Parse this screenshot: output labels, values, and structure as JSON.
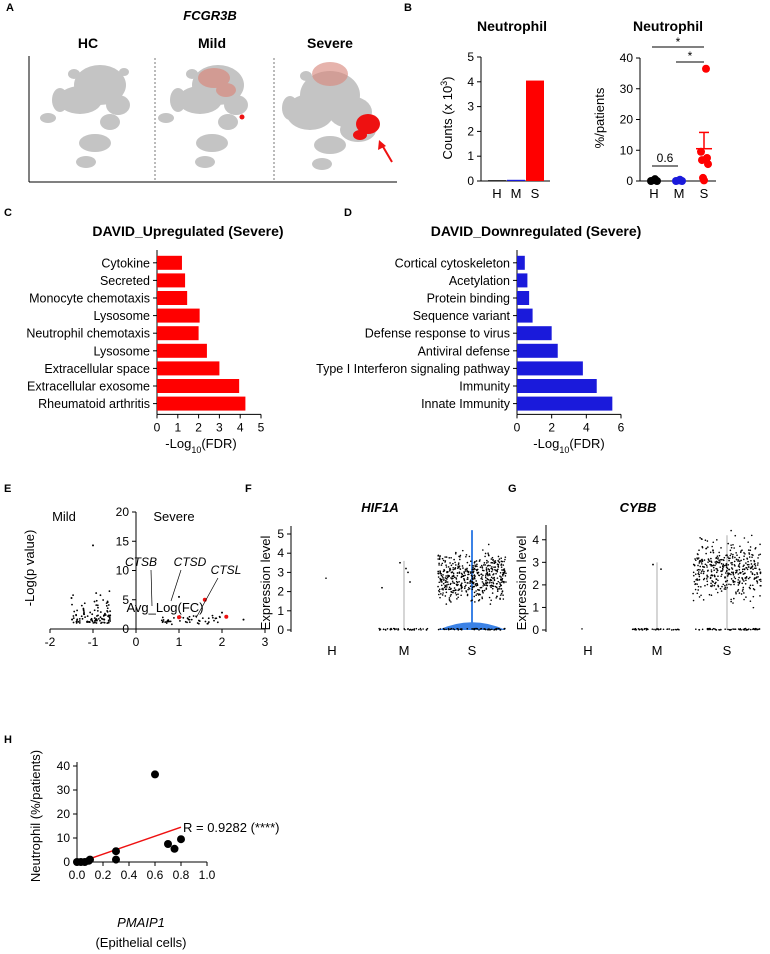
{
  "colors": {
    "up": "#ff0000",
    "down": "#1a1adb",
    "violin": "#3b82e6",
    "umap": "#c4c4c4",
    "red": "#ee1111"
  },
  "panelA": {
    "label": "A",
    "gene": "FCGR3B",
    "groups": [
      "HC",
      "Mild",
      "Severe"
    ]
  },
  "panelB": {
    "label": "B",
    "bar": {
      "title": "Neutrophil",
      "ylabel_main": "Counts (x 10",
      "ylabel_sup": "3",
      "ylabel_end": ")",
      "categories": [
        "H",
        "M",
        "S"
      ],
      "values": [
        0,
        0.03,
        4.05
      ],
      "yticks": [
        "0",
        "1",
        "2",
        "3",
        "4",
        "5"
      ]
    },
    "dots": {
      "title": "Neutrophil",
      "ylabel": "%/patients",
      "categories": [
        "H",
        "M",
        "S"
      ],
      "yticks": [
        "0",
        "10",
        "20",
        "30",
        "40"
      ],
      "annot_p": "0.6",
      "star1": "*",
      "star2": "*"
    }
  },
  "panelC": {
    "label": "C",
    "title": "DAVID_Upregulated (Severe)",
    "xlabel_pre": "-Log",
    "xlabel_sub": "10",
    "xlabel_post": "(FDR)",
    "xticks": [
      "0",
      "1",
      "2",
      "3",
      "4",
      "5"
    ],
    "terms": [
      "Cytokine",
      "Secreted",
      "Monocyte chemotaxis",
      "Lysosome",
      "Neutrophil chemotaxis",
      "Lysosome",
      "Extracellular space",
      "Extracellular exosome",
      "Rheumatoid arthritis"
    ],
    "values": [
      1.2,
      1.35,
      1.45,
      2.05,
      2.0,
      2.4,
      3.0,
      3.95,
      4.25
    ]
  },
  "panelD": {
    "label": "D",
    "title": "DAVID_Downregulated (Severe)",
    "xlabel_pre": "-Log",
    "xlabel_sub": "10",
    "xlabel_post": "(FDR)",
    "xticks": [
      "0",
      "2",
      "4",
      "6"
    ],
    "terms": [
      "Cortical cytoskeleton",
      "Acetylation",
      "Protein binding",
      "Sequence variant",
      "Defense response to virus",
      "Antiviral defense",
      "Type I Interferon signaling pathway",
      "Immunity",
      "Innate Immunity"
    ],
    "values": [
      0.45,
      0.6,
      0.7,
      0.9,
      2.0,
      2.35,
      3.8,
      4.6,
      5.5
    ]
  },
  "panelE": {
    "label": "E",
    "left": "Mild",
    "right": "Severe",
    "ylabel": "-Log(p value)",
    "xlabel": "Avg_Log(FC)",
    "yticks": [
      "0",
      "5",
      "10",
      "15",
      "20"
    ],
    "xticks": [
      "-2",
      "-1",
      "0",
      "1",
      "2",
      "3"
    ],
    "genes": [
      "CTSB",
      "CTSD",
      "CTSL"
    ]
  },
  "panelF": {
    "label": "F",
    "gene": "HIF1A",
    "ylabel": "Expression level",
    "yticks": [
      "0",
      "1",
      "2",
      "3",
      "4",
      "5"
    ],
    "categories": [
      "H",
      "M",
      "S"
    ]
  },
  "panelG": {
    "label": "G",
    "gene": "CYBB",
    "ylabel": "Expression level",
    "yticks": [
      "0",
      "1",
      "2",
      "3",
      "4"
    ],
    "categories": [
      "H",
      "M",
      "S"
    ]
  },
  "panelH": {
    "label": "H",
    "ylabel": "Neutrophil (%/patients)",
    "xlabel_gene": "PMAIP1",
    "xlabel_cells": "(Epithelial cells)",
    "yticks": [
      "0",
      "10",
      "20",
      "30",
      "40"
    ],
    "xticks": [
      "0.0",
      "0.2",
      "0.4",
      "0.6",
      "0.8",
      "1.0"
    ],
    "annotation": "R = 0.9282 (****)",
    "x": [
      0.0,
      0.03,
      0.06,
      0.09,
      0.1,
      0.3,
      0.3,
      0.6,
      0.7,
      0.75,
      0.8
    ],
    "y": [
      0,
      0,
      0,
      0.5,
      1,
      1,
      4.5,
      36.5,
      7.5,
      5.5,
      9.5
    ]
  }
}
